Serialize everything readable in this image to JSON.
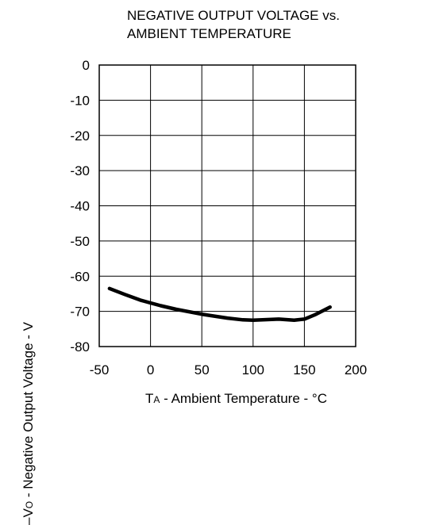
{
  "chart_data": {
    "type": "line",
    "title_line1": "NEGATIVE OUTPUT VOLTAGE vs.",
    "title_line2": "AMBIENT TEMPERATURE",
    "xlabel_prefix": "T",
    "xlabel_sub": "A",
    "xlabel_rest": " - Ambient Temperature - °C",
    "ylabel_prefix": "–V",
    "ylabel_sub": "O",
    "ylabel_rest": " - Negative Output Voltage - V",
    "xlim": [
      -50,
      200
    ],
    "ylim": [
      -80,
      0
    ],
    "xticks": [
      -50,
      0,
      50,
      100,
      150,
      200
    ],
    "yticks": [
      0,
      -10,
      -20,
      -30,
      -40,
      -50,
      -60,
      -70,
      -80
    ],
    "grid": true,
    "series": [
      {
        "x": [
          -40,
          -25,
          -10,
          0,
          10,
          25,
          50,
          75,
          90,
          100,
          125,
          140,
          150,
          160,
          175
        ],
        "y": [
          -63.5,
          -65.2,
          -66.8,
          -67.6,
          -68.4,
          -69.4,
          -70.8,
          -71.9,
          -72.4,
          -72.5,
          -72.2,
          -72.5,
          -72.2,
          -71.0,
          -68.8
        ]
      }
    ]
  }
}
